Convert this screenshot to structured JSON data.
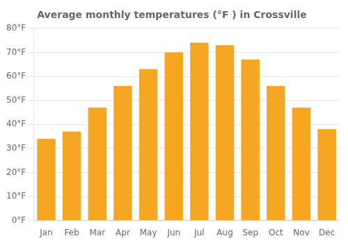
{
  "chart_data": {
    "type": "bar",
    "title": "Average monthly temperatures (°F ) in Crossville",
    "categories": [
      "Jan",
      "Feb",
      "Mar",
      "Apr",
      "May",
      "Jun",
      "Jul",
      "Aug",
      "Sep",
      "Oct",
      "Nov",
      "Dec"
    ],
    "values": [
      34,
      37,
      47,
      56,
      63,
      70,
      74,
      73,
      67,
      56,
      47,
      38
    ],
    "color": "#F5A623",
    "ylim": [
      0,
      80
    ],
    "yticks": [
      {
        "value": 0,
        "label": "0°F"
      },
      {
        "value": 10,
        "label": "10°F"
      },
      {
        "value": 20,
        "label": "20°F"
      },
      {
        "value": 30,
        "label": "30°F"
      },
      {
        "value": 40,
        "label": "40°F"
      },
      {
        "value": 50,
        "label": "50°F"
      },
      {
        "value": 60,
        "label": "60°F"
      },
      {
        "value": 70,
        "label": "70°F"
      },
      {
        "value": 80,
        "label": "80°F"
      }
    ],
    "grid": true
  }
}
